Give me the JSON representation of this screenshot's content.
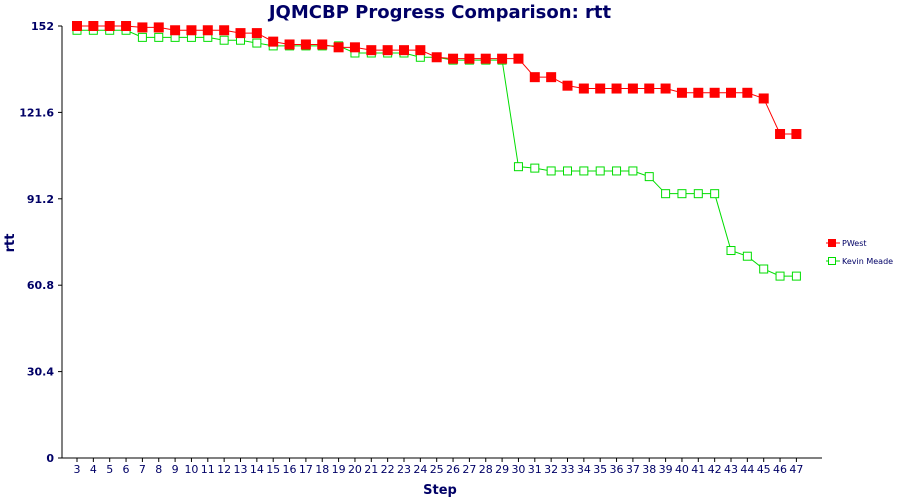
{
  "chart_data": {
    "type": "line",
    "title": "JQMCBP Progress Comparison: rtt",
    "xlabel": "Step",
    "ylabel": "rtt",
    "ylim": [
      0,
      152
    ],
    "yticks": [
      "0",
      "30.4",
      "60.8",
      "91.2",
      "121.6",
      "152"
    ],
    "x": [
      3,
      4,
      5,
      6,
      7,
      8,
      9,
      10,
      11,
      12,
      13,
      14,
      15,
      16,
      17,
      18,
      19,
      20,
      21,
      22,
      23,
      24,
      25,
      26,
      27,
      28,
      29,
      30,
      31,
      32,
      33,
      34,
      35,
      36,
      37,
      38,
      39,
      40,
      41,
      42,
      43,
      44,
      45,
      46,
      47
    ],
    "grid": false,
    "legend_position": "right",
    "series": [
      {
        "name": "PWest",
        "color": "#ff0000",
        "marker": "filled-square",
        "values": [
          152,
          152,
          152,
          152,
          151.5,
          151.5,
          150.5,
          150.5,
          150.5,
          150.5,
          149.5,
          149.5,
          146.5,
          145.5,
          145.5,
          145.5,
          144.5,
          144.5,
          143.5,
          143.5,
          143.5,
          143.5,
          141,
          140.5,
          140.5,
          140.5,
          140.5,
          140.5,
          134,
          134,
          131,
          130,
          130,
          130,
          130,
          130,
          130,
          128.5,
          128.5,
          128.5,
          128.5,
          128.5,
          126.5,
          114,
          114
        ]
      },
      {
        "name": "Kevin Meade",
        "color": "#00dd00",
        "marker": "open-square",
        "values": [
          150.5,
          150.5,
          150.5,
          150.5,
          148,
          148,
          148,
          148,
          148,
          147,
          147,
          146,
          145,
          145,
          145,
          145,
          145,
          142.5,
          142.5,
          142.5,
          142.5,
          141,
          141,
          140,
          140,
          140,
          140,
          102.5,
          102,
          101,
          101,
          101,
          101,
          101,
          101,
          99,
          93,
          93,
          93,
          93,
          73,
          71,
          66.5,
          64,
          64
        ]
      }
    ]
  }
}
